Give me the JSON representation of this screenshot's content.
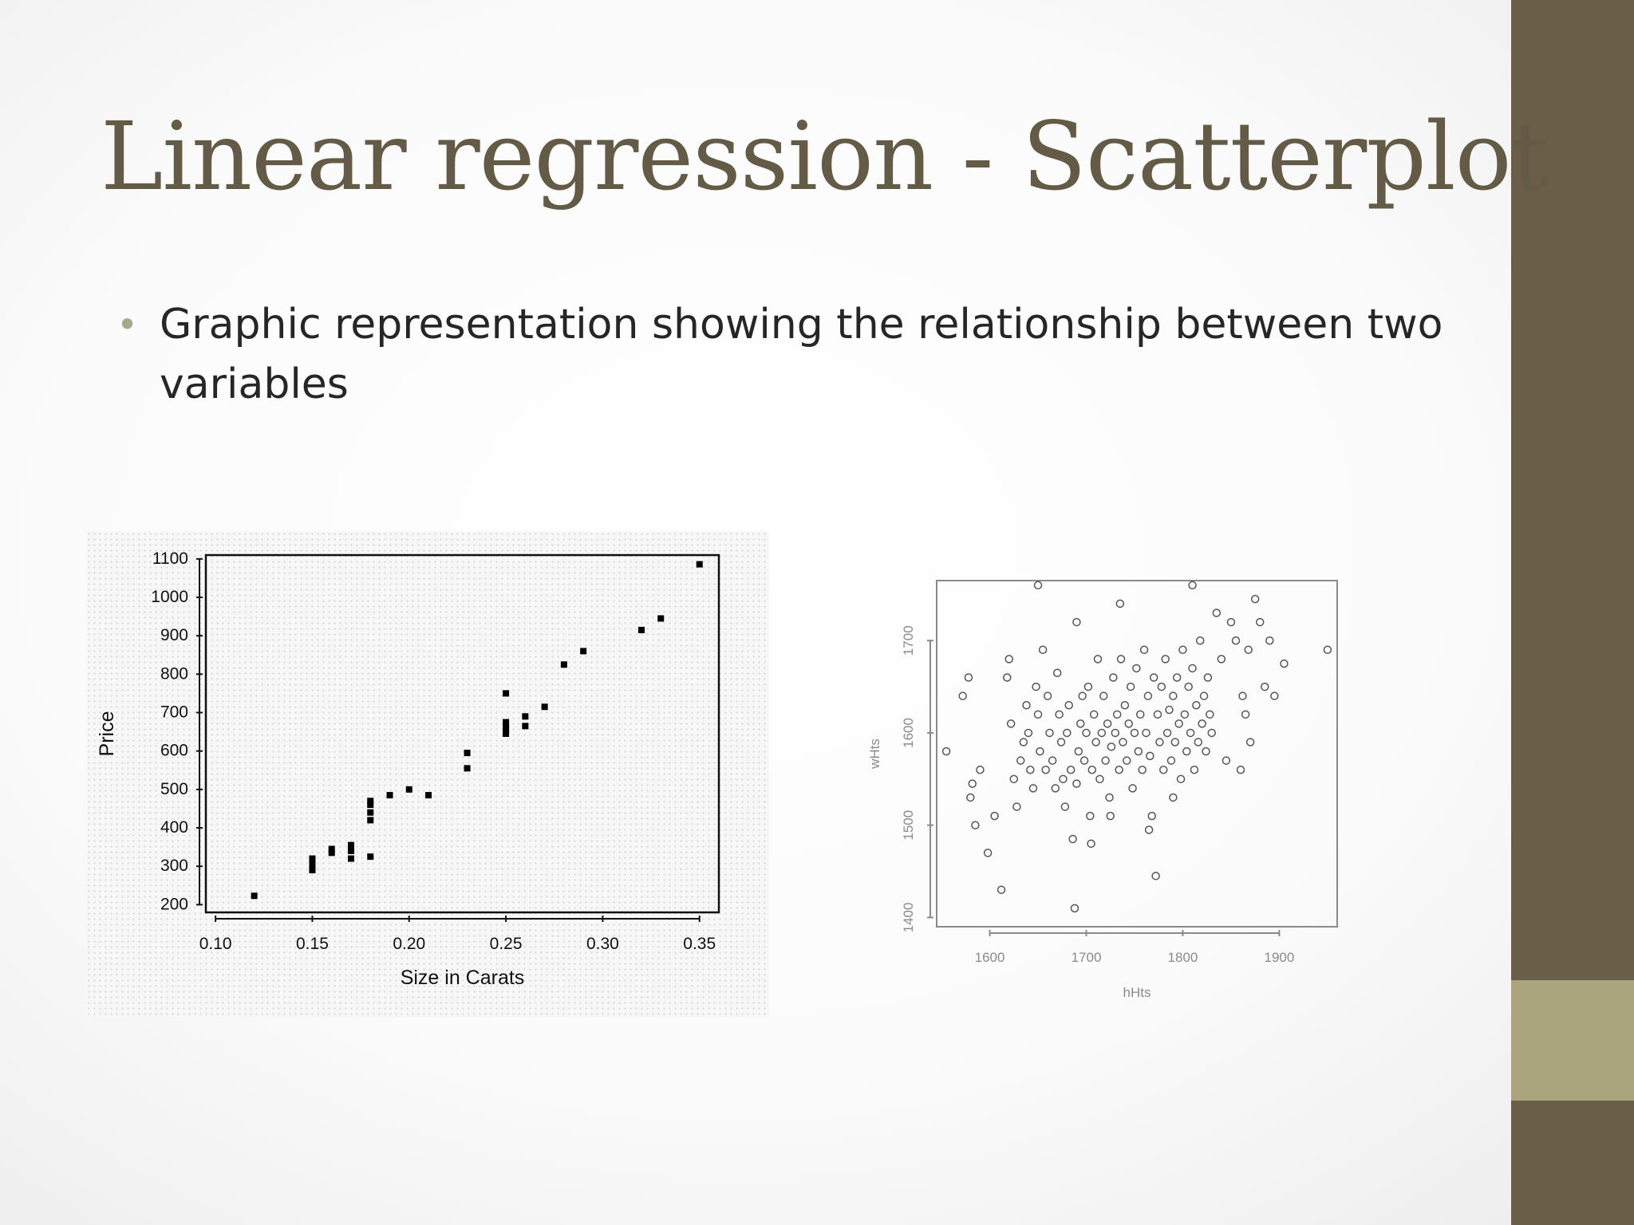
{
  "slide": {
    "title": "Linear regression - Scatterplot",
    "bullet": "Graphic representation showing the relationship between two variables"
  },
  "colors": {
    "sidebar": "#6b5e48",
    "sidebar_accent": "#aaa57c",
    "title": "#635b46",
    "bullet_dot": "#a8a88a"
  },
  "chart_data": [
    {
      "type": "scatter",
      "xlabel": "Size in Carats",
      "ylabel": "Price",
      "xlim": [
        0.095,
        0.36
      ],
      "ylim": [
        180,
        1110
      ],
      "xticks": [
        "0.10",
        "0.15",
        "0.20",
        "0.25",
        "0.30",
        "0.35"
      ],
      "yticks": [
        "200",
        "300",
        "400",
        "500",
        "600",
        "700",
        "800",
        "900",
        "1000",
        "1100"
      ],
      "grid": false,
      "marker": "filled-square",
      "points": [
        [
          0.12,
          223
        ],
        [
          0.15,
          290
        ],
        [
          0.15,
          305
        ],
        [
          0.15,
          320
        ],
        [
          0.16,
          335
        ],
        [
          0.16,
          345
        ],
        [
          0.17,
          320
        ],
        [
          0.17,
          340
        ],
        [
          0.17,
          355
        ],
        [
          0.18,
          325
        ],
        [
          0.18,
          420
        ],
        [
          0.18,
          440
        ],
        [
          0.18,
          460
        ],
        [
          0.18,
          470
        ],
        [
          0.19,
          485
        ],
        [
          0.2,
          500
        ],
        [
          0.21,
          485
        ],
        [
          0.23,
          555
        ],
        [
          0.23,
          595
        ],
        [
          0.25,
          645
        ],
        [
          0.25,
          655
        ],
        [
          0.25,
          665
        ],
        [
          0.25,
          675
        ],
        [
          0.25,
          750
        ],
        [
          0.26,
          665
        ],
        [
          0.26,
          690
        ],
        [
          0.27,
          715
        ],
        [
          0.28,
          825
        ],
        [
          0.29,
          860
        ],
        [
          0.32,
          915
        ],
        [
          0.33,
          945
        ],
        [
          0.35,
          1086
        ]
      ]
    },
    {
      "type": "scatter",
      "xlabel": "hHts",
      "ylabel": "wHts",
      "xlim": [
        1545,
        1960
      ],
      "ylim": [
        1390,
        1765
      ],
      "xticks": [
        "1600",
        "1700",
        "1800",
        "1900"
      ],
      "yticks": [
        "1400",
        "1500",
        "1600",
        "1700"
      ],
      "grid": false,
      "marker": "open-circle",
      "points": [
        [
          1555,
          1580
        ],
        [
          1572,
          1640
        ],
        [
          1578,
          1660
        ],
        [
          1580,
          1530
        ],
        [
          1582,
          1545
        ],
        [
          1585,
          1500
        ],
        [
          1590,
          1560
        ],
        [
          1598,
          1470
        ],
        [
          1605,
          1510
        ],
        [
          1612,
          1430
        ],
        [
          1618,
          1660
        ],
        [
          1620,
          1680
        ],
        [
          1622,
          1610
        ],
        [
          1625,
          1550
        ],
        [
          1628,
          1520
        ],
        [
          1632,
          1570
        ],
        [
          1635,
          1590
        ],
        [
          1638,
          1630
        ],
        [
          1640,
          1600
        ],
        [
          1642,
          1560
        ],
        [
          1645,
          1540
        ],
        [
          1648,
          1650
        ],
        [
          1650,
          1620
        ],
        [
          1652,
          1580
        ],
        [
          1655,
          1690
        ],
        [
          1658,
          1560
        ],
        [
          1660,
          1640
        ],
        [
          1662,
          1600
        ],
        [
          1665,
          1570
        ],
        [
          1668,
          1540
        ],
        [
          1670,
          1665
        ],
        [
          1672,
          1620
        ],
        [
          1674,
          1590
        ],
        [
          1676,
          1550
        ],
        [
          1678,
          1520
        ],
        [
          1680,
          1600
        ],
        [
          1682,
          1630
        ],
        [
          1684,
          1560
        ],
        [
          1686,
          1485
        ],
        [
          1688,
          1410
        ],
        [
          1690,
          1545
        ],
        [
          1692,
          1580
        ],
        [
          1694,
          1610
        ],
        [
          1696,
          1640
        ],
        [
          1698,
          1570
        ],
        [
          1700,
          1600
        ],
        [
          1702,
          1650
        ],
        [
          1704,
          1510
        ],
        [
          1706,
          1560
        ],
        [
          1708,
          1620
        ],
        [
          1710,
          1590
        ],
        [
          1712,
          1680
        ],
        [
          1714,
          1550
        ],
        [
          1716,
          1600
        ],
        [
          1718,
          1640
        ],
        [
          1720,
          1570
        ],
        [
          1722,
          1610
        ],
        [
          1724,
          1530
        ],
        [
          1726,
          1585
        ],
        [
          1728,
          1660
        ],
        [
          1730,
          1600
        ],
        [
          1732,
          1620
        ],
        [
          1734,
          1560
        ],
        [
          1736,
          1680
        ],
        [
          1738,
          1590
        ],
        [
          1740,
          1630
        ],
        [
          1742,
          1570
        ],
        [
          1744,
          1610
        ],
        [
          1746,
          1650
        ],
        [
          1748,
          1540
        ],
        [
          1750,
          1600
        ],
        [
          1752,
          1670
        ],
        [
          1754,
          1580
        ],
        [
          1756,
          1620
        ],
        [
          1758,
          1560
        ],
        [
          1760,
          1690
        ],
        [
          1762,
          1600
        ],
        [
          1764,
          1640
        ],
        [
          1766,
          1575
        ],
        [
          1768,
          1510
        ],
        [
          1770,
          1660
        ],
        [
          1772,
          1445
        ],
        [
          1774,
          1620
        ],
        [
          1776,
          1590
        ],
        [
          1778,
          1650
        ],
        [
          1780,
          1560
        ],
        [
          1782,
          1680
        ],
        [
          1784,
          1600
        ],
        [
          1786,
          1625
        ],
        [
          1788,
          1570
        ],
        [
          1790,
          1640
        ],
        [
          1792,
          1590
        ],
        [
          1794,
          1660
        ],
        [
          1796,
          1610
        ],
        [
          1798,
          1550
        ],
        [
          1800,
          1690
        ],
        [
          1802,
          1620
        ],
        [
          1804,
          1580
        ],
        [
          1806,
          1650
        ],
        [
          1808,
          1600
        ],
        [
          1810,
          1670
        ],
        [
          1812,
          1560
        ],
        [
          1814,
          1630
        ],
        [
          1816,
          1590
        ],
        [
          1818,
          1700
        ],
        [
          1820,
          1610
        ],
        [
          1822,
          1640
        ],
        [
          1824,
          1580
        ],
        [
          1826,
          1660
        ],
        [
          1828,
          1620
        ],
        [
          1830,
          1600
        ],
        [
          1835,
          1730
        ],
        [
          1840,
          1680
        ],
        [
          1845,
          1570
        ],
        [
          1850,
          1720
        ],
        [
          1855,
          1700
        ],
        [
          1860,
          1560
        ],
        [
          1862,
          1640
        ],
        [
          1865,
          1620
        ],
        [
          1868,
          1690
        ],
        [
          1870,
          1590
        ],
        [
          1875,
          1745
        ],
        [
          1880,
          1720
        ],
        [
          1885,
          1650
        ],
        [
          1890,
          1700
        ],
        [
          1895,
          1640
        ],
        [
          1905,
          1675
        ],
        [
          1950,
          1690
        ],
        [
          1725,
          1510
        ],
        [
          1705,
          1480
        ],
        [
          1690,
          1720
        ],
        [
          1735,
          1740
        ],
        [
          1810,
          1760
        ],
        [
          1790,
          1530
        ],
        [
          1765,
          1495
        ],
        [
          1650,
          1760
        ]
      ]
    }
  ]
}
